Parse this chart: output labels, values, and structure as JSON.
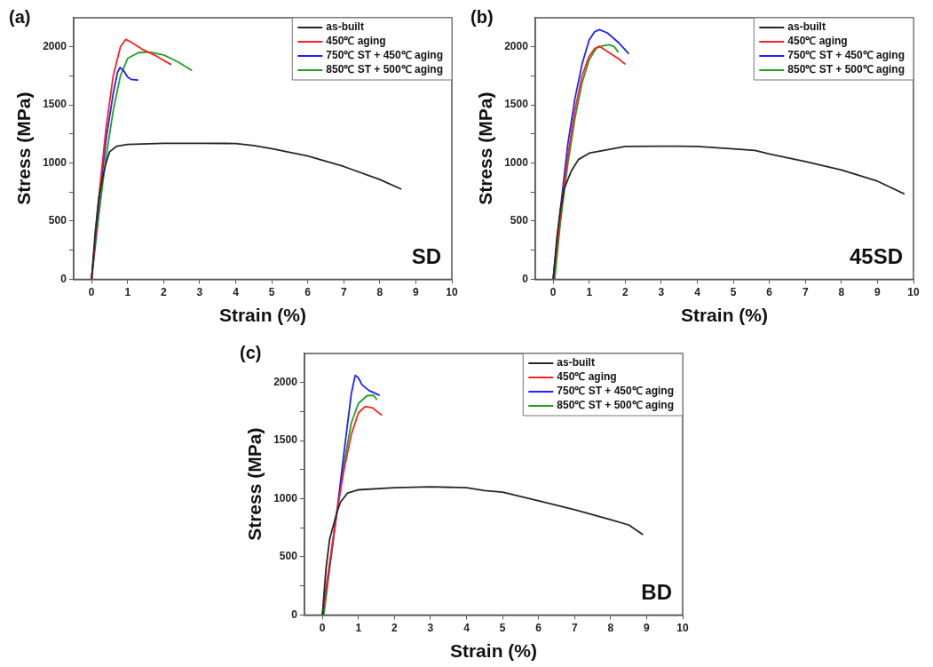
{
  "chart_data": [
    {
      "type": "line",
      "xlabel": "Strain (%)",
      "ylabel": "Stress (MPa)",
      "annotations": [
        "(a)",
        "SD"
      ],
      "legend": "top right",
      "grid": false,
      "xlim": [
        -0.5,
        10
      ],
      "xticks": [
        0,
        1,
        2,
        3,
        4,
        5,
        6,
        7,
        8,
        9,
        10
      ],
      "ylim": [
        0,
        2250
      ],
      "yticks": [
        0,
        {
          "value": 250,
          "label": null
        },
        500,
        {
          "value": 750,
          "label": null
        },
        1000,
        {
          "value": 1250,
          "label": null
        },
        1500,
        {
          "value": 1750,
          "label": null
        },
        2000
      ],
      "series": [
        {
          "name": "as-built",
          "color": "#262626",
          "x": [
            0,
            0.1,
            0.2,
            0.3,
            0.4,
            0.5,
            0.7,
            1,
            2,
            3,
            4,
            4.5,
            5,
            6,
            7,
            8,
            8.6
          ],
          "values": [
            0,
            400,
            700,
            866,
            1000,
            1097,
            1145,
            1160,
            1170,
            1170,
            1168,
            1150,
            1124,
            1060,
            970,
            858,
            775
          ]
        },
        {
          "name": "450℃ aging",
          "color": "#ff2020",
          "x": [
            0,
            0.2,
            0.4,
            0.6,
            0.8,
            0.95,
            1.1,
            1.4,
            1.8,
            2.21
          ],
          "values": [
            0,
            700,
            1300,
            1750,
            2000,
            2064,
            2040,
            1980,
            1920,
            1846
          ]
        },
        {
          "name": "750℃ ST + 450℃ aging",
          "color": "#2020ff",
          "x": [
            0,
            0.2,
            0.4,
            0.6,
            0.72,
            0.79,
            0.9,
            1.0,
            1.1,
            1.29
          ],
          "values": [
            0,
            650,
            1200,
            1600,
            1780,
            1823,
            1790,
            1740,
            1720,
            1713
          ]
        },
        {
          "name": "850℃ ST + 500℃ aging",
          "color": "#20a020",
          "x": [
            0,
            0.2,
            0.4,
            0.6,
            0.8,
            1.0,
            1.3,
            1.6,
            2.0,
            2.4,
            2.79
          ],
          "values": [
            0,
            550,
            1050,
            1450,
            1750,
            1900,
            1950,
            1955,
            1930,
            1870,
            1795
          ]
        }
      ]
    },
    {
      "type": "line",
      "xlabel": "Strain (%)",
      "ylabel": "Stress (MPa)",
      "annotations": [
        "(b)",
        "45SD"
      ],
      "legend": "top right",
      "grid": false,
      "xlim": [
        -0.5,
        10
      ],
      "xticks": [
        0,
        1,
        2,
        3,
        4,
        5,
        6,
        7,
        8,
        9,
        10
      ],
      "ylim": [
        0,
        2250
      ],
      "yticks": [
        0,
        {
          "value": 250,
          "label": null
        },
        500,
        {
          "value": 750,
          "label": null
        },
        1000,
        {
          "value": 1250,
          "label": null
        },
        1500,
        {
          "value": 1750,
          "label": null
        },
        2000
      ],
      "series": [
        {
          "name": "as-built",
          "color": "#262626",
          "x": [
            0,
            0.1,
            0.2,
            0.3,
            0.5,
            0.7,
            1,
            2,
            3,
            4,
            5,
            5.6,
            6,
            7,
            8,
            9,
            9.75
          ],
          "values": [
            0,
            350,
            600,
            775,
            930,
            1030,
            1085,
            1143,
            1145,
            1143,
            1122,
            1109,
            1078,
            1013,
            940,
            844,
            734
          ]
        },
        {
          "name": "450℃ aging",
          "color": "#ff2020",
          "x": [
            0,
            0.2,
            0.4,
            0.6,
            0.8,
            1.0,
            1.15,
            1.28,
            1.5,
            1.8,
            2.0
          ],
          "values": [
            0,
            550,
            1050,
            1450,
            1750,
            1920,
            1985,
            2005,
            1960,
            1900,
            1850
          ]
        },
        {
          "name": "750℃ ST + 450℃ aging",
          "color": "#2020ff",
          "x": [
            0,
            0.2,
            0.4,
            0.6,
            0.8,
            1.0,
            1.15,
            1.28,
            1.5,
            1.8,
            2.1
          ],
          "values": [
            0,
            600,
            1150,
            1550,
            1850,
            2060,
            2130,
            2148,
            2120,
            2040,
            1940
          ]
        },
        {
          "name": "850℃ ST + 500℃ aging",
          "color": "#20a020",
          "x": [
            0.04,
            0.2,
            0.4,
            0.6,
            0.8,
            1.0,
            1.2,
            1.4,
            1.55,
            1.7,
            1.81
          ],
          "values": [
            0,
            490,
            980,
            1380,
            1690,
            1890,
            1990,
            2010,
            2018,
            2000,
            1953
          ]
        }
      ]
    },
    {
      "type": "line",
      "xlabel": "Strain (%)",
      "ylabel": "Stress (MPa)",
      "annotations": [
        "(c)",
        "BD"
      ],
      "legend": "top right",
      "grid": false,
      "xlim": [
        -0.5,
        10
      ],
      "xticks": [
        0,
        1,
        2,
        3,
        4,
        5,
        6,
        7,
        8,
        9,
        10
      ],
      "ylim": [
        0,
        2250
      ],
      "yticks": [
        0,
        {
          "value": 250,
          "label": null
        },
        500,
        {
          "value": 750,
          "label": null
        },
        1000,
        {
          "value": 1250,
          "label": null
        },
        1500,
        {
          "value": 1750,
          "label": null
        },
        2000
      ],
      "series": [
        {
          "name": "as-built",
          "color": "#262626",
          "x": [
            0,
            0.1,
            0.2,
            0.4,
            0.5,
            0.7,
            1,
            2,
            3,
            4,
            4.5,
            5,
            6,
            7,
            8,
            8.5,
            8.9
          ],
          "values": [
            0,
            400,
            650,
            880,
            970,
            1050,
            1077,
            1095,
            1103,
            1095,
            1070,
            1057,
            982,
            905,
            820,
            775,
            691
          ]
        },
        {
          "name": "450℃ aging",
          "color": "#ff2020",
          "x": [
            0,
            0.2,
            0.4,
            0.6,
            0.8,
            1.0,
            1.19,
            1.4,
            1.65
          ],
          "values": [
            0,
            450,
            880,
            1250,
            1550,
            1740,
            1795,
            1780,
            1718
          ]
        },
        {
          "name": "750℃ ST + 450℃ aging",
          "color": "#2020ff",
          "x": [
            0,
            0.2,
            0.4,
            0.6,
            0.8,
            0.91,
            1.0,
            1.1,
            1.3,
            1.59
          ],
          "values": [
            0,
            420,
            880,
            1400,
            1900,
            2062,
            2040,
            1980,
            1930,
            1890
          ]
        },
        {
          "name": "850℃ ST + 500℃ aging",
          "color": "#20a020",
          "x": [
            0.04,
            0.2,
            0.4,
            0.6,
            0.8,
            1.0,
            1.24,
            1.42,
            1.52
          ],
          "values": [
            0,
            400,
            880,
            1300,
            1650,
            1820,
            1887,
            1890,
            1851
          ]
        }
      ]
    }
  ]
}
